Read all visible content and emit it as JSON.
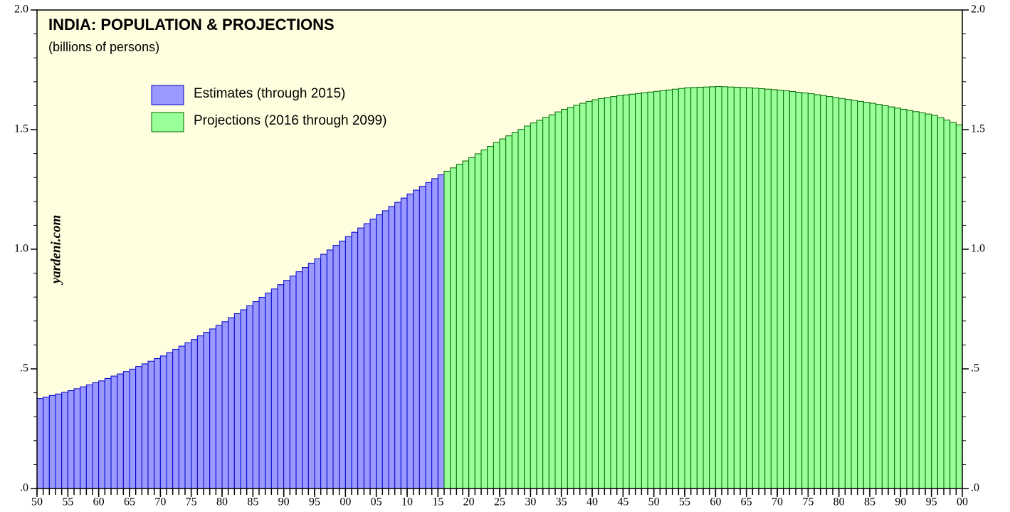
{
  "chart_data": {
    "type": "bar",
    "title": "INDIA: POPULATION & PROJECTIONS",
    "subtitle": "(billions of persons)",
    "watermark": "yardeni.com",
    "background": "#ffffdf",
    "series": [
      {
        "name": "Estimates (through 2015)",
        "color": "#9999ff",
        "edge": "#0000cc",
        "x": [
          1950,
          1951,
          1952,
          1953,
          1954,
          1955,
          1956,
          1957,
          1958,
          1959,
          1960,
          1961,
          1962,
          1963,
          1964,
          1965,
          1966,
          1967,
          1968,
          1969,
          1970,
          1971,
          1972,
          1973,
          1974,
          1975,
          1976,
          1977,
          1978,
          1979,
          1980,
          1981,
          1982,
          1983,
          1984,
          1985,
          1986,
          1987,
          1988,
          1989,
          1990,
          1991,
          1992,
          1993,
          1994,
          1995,
          1996,
          1997,
          1998,
          1999,
          2000,
          2001,
          2002,
          2003,
          2004,
          2005,
          2006,
          2007,
          2008,
          2009,
          2010,
          2011,
          2012,
          2013,
          2014,
          2015
        ],
        "values": [
          0.376,
          0.382,
          0.389,
          0.395,
          0.402,
          0.409,
          0.417,
          0.425,
          0.433,
          0.442,
          0.45,
          0.46,
          0.47,
          0.479,
          0.489,
          0.499,
          0.51,
          0.521,
          0.532,
          0.543,
          0.554,
          0.568,
          0.582,
          0.595,
          0.609,
          0.623,
          0.638,
          0.653,
          0.667,
          0.682,
          0.697,
          0.714,
          0.731,
          0.747,
          0.764,
          0.781,
          0.799,
          0.817,
          0.834,
          0.852,
          0.87,
          0.888,
          0.906,
          0.924,
          0.942,
          0.96,
          0.979,
          0.997,
          1.016,
          1.034,
          1.053,
          1.071,
          1.089,
          1.107,
          1.126,
          1.144,
          1.161,
          1.179,
          1.196,
          1.214,
          1.231,
          1.247,
          1.263,
          1.279,
          1.295,
          1.311
        ]
      },
      {
        "name": "Projections (2016 through 2099)",
        "color": "#99ff99",
        "edge": "#006600",
        "x": [
          2016,
          2017,
          2018,
          2019,
          2020,
          2021,
          2022,
          2023,
          2024,
          2025,
          2026,
          2027,
          2028,
          2029,
          2030,
          2031,
          2032,
          2033,
          2034,
          2035,
          2036,
          2037,
          2038,
          2039,
          2040,
          2041,
          2042,
          2043,
          2044,
          2045,
          2046,
          2047,
          2048,
          2049,
          2050,
          2051,
          2052,
          2053,
          2054,
          2055,
          2056,
          2057,
          2058,
          2059,
          2060,
          2061,
          2062,
          2063,
          2064,
          2065,
          2066,
          2067,
          2068,
          2069,
          2070,
          2071,
          2072,
          2073,
          2074,
          2075,
          2076,
          2077,
          2078,
          2079,
          2080,
          2081,
          2082,
          2083,
          2084,
          2085,
          2086,
          2087,
          2088,
          2089,
          2090,
          2091,
          2092,
          2093,
          2094,
          2095,
          2096,
          2097,
          2098,
          2099
        ],
        "values": [
          1.326,
          1.34,
          1.355,
          1.369,
          1.383,
          1.399,
          1.415,
          1.43,
          1.446,
          1.461,
          1.474,
          1.488,
          1.501,
          1.515,
          1.528,
          1.539,
          1.551,
          1.562,
          1.574,
          1.585,
          1.593,
          1.602,
          1.61,
          1.618,
          1.625,
          1.63,
          1.634,
          1.638,
          1.642,
          1.645,
          1.648,
          1.651,
          1.654,
          1.657,
          1.66,
          1.663,
          1.666,
          1.669,
          1.672,
          1.675,
          1.676,
          1.677,
          1.678,
          1.679,
          1.68,
          1.679,
          1.678,
          1.677,
          1.676,
          1.675,
          1.673,
          1.671,
          1.669,
          1.667,
          1.665,
          1.662,
          1.659,
          1.656,
          1.653,
          1.65,
          1.646,
          1.642,
          1.638,
          1.634,
          1.63,
          1.626,
          1.622,
          1.618,
          1.614,
          1.61,
          1.605,
          1.6,
          1.595,
          1.59,
          1.585,
          1.58,
          1.575,
          1.57,
          1.565,
          1.56,
          1.55,
          1.54,
          1.53,
          1.52
        ]
      }
    ],
    "xlim": [
      1950,
      2100
    ],
    "xticks": [
      {
        "value": 1950,
        "label": "50"
      },
      {
        "value": 1955,
        "label": "55"
      },
      {
        "value": 1960,
        "label": "60"
      },
      {
        "value": 1965,
        "label": "65"
      },
      {
        "value": 1970,
        "label": "70"
      },
      {
        "value": 1975,
        "label": "75"
      },
      {
        "value": 1980,
        "label": "80"
      },
      {
        "value": 1985,
        "label": "85"
      },
      {
        "value": 1990,
        "label": "90"
      },
      {
        "value": 1995,
        "label": "95"
      },
      {
        "value": 2000,
        "label": "00"
      },
      {
        "value": 2005,
        "label": "05"
      },
      {
        "value": 2010,
        "label": "10"
      },
      {
        "value": 2015,
        "label": "15"
      },
      {
        "value": 2020,
        "label": "20"
      },
      {
        "value": 2025,
        "label": "25"
      },
      {
        "value": 2030,
        "label": "30"
      },
      {
        "value": 2035,
        "label": "35"
      },
      {
        "value": 2040,
        "label": "40"
      },
      {
        "value": 2045,
        "label": "45"
      },
      {
        "value": 2050,
        "label": "50"
      },
      {
        "value": 2055,
        "label": "55"
      },
      {
        "value": 2060,
        "label": "60"
      },
      {
        "value": 2065,
        "label": "65"
      },
      {
        "value": 2070,
        "label": "70"
      },
      {
        "value": 2075,
        "label": "75"
      },
      {
        "value": 2080,
        "label": "80"
      },
      {
        "value": 2085,
        "label": "85"
      },
      {
        "value": 2090,
        "label": "90"
      },
      {
        "value": 2095,
        "label": "95"
      },
      {
        "value": 2100,
        "label": "00"
      }
    ],
    "ylim": [
      0,
      2.0
    ],
    "yticks": [
      {
        "value": 0,
        "label": ".0"
      },
      {
        "value": 0.5,
        "label": ".5"
      },
      {
        "value": 1,
        "label": "1.0"
      },
      1.5,
      {
        "value": 2,
        "label": "2.0"
      }
    ],
    "yminorticks": [
      0.1,
      0.2,
      0.3,
      0.4,
      0.6,
      0.7,
      0.8,
      0.9,
      1.1,
      1.2,
      1.3,
      1.4,
      1.6,
      1.7,
      1.8,
      1.9
    ],
    "legend": "upper left"
  }
}
